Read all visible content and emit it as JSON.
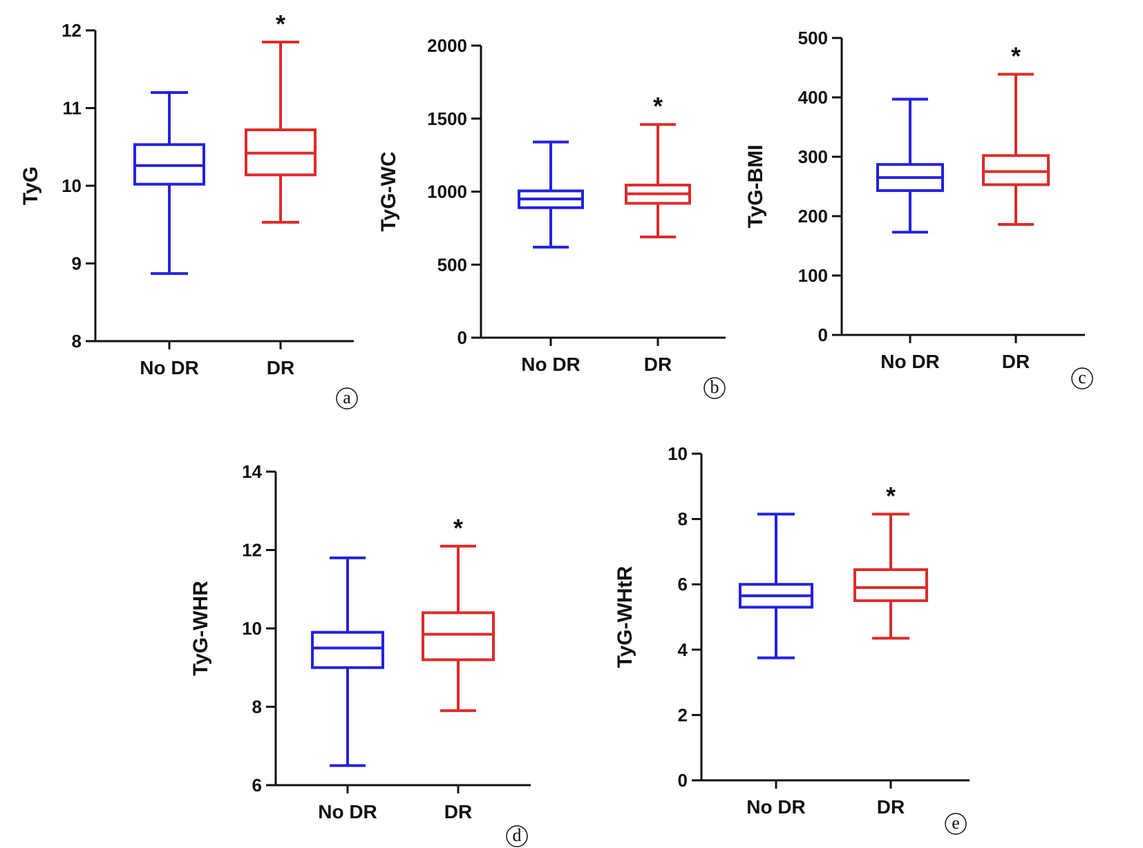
{
  "figure": {
    "colors": {
      "No DR": "#2222dd",
      "DR": "#dd2b2b"
    },
    "icon_names": [
      "significance-star-icon"
    ]
  },
  "chart_data": [
    {
      "type": "box",
      "panel_label": "a",
      "ylabel": "TyG",
      "ylim": [
        8,
        12
      ],
      "yticks": [
        8,
        9,
        10,
        11,
        12
      ],
      "categories": [
        "No DR",
        "DR"
      ],
      "series": [
        {
          "name": "No DR",
          "min": 8.87,
          "q1": 10.02,
          "median": 10.26,
          "q3": 10.53,
          "max": 11.2,
          "significance": ""
        },
        {
          "name": "DR",
          "min": 9.53,
          "q1": 10.14,
          "median": 10.42,
          "q3": 10.72,
          "max": 11.85,
          "significance": "*"
        }
      ]
    },
    {
      "type": "box",
      "panel_label": "b",
      "ylabel": "TyG-WC",
      "ylim": [
        0,
        2000
      ],
      "yticks": [
        0,
        500,
        1000,
        1500,
        2000
      ],
      "categories": [
        "No DR",
        "DR"
      ],
      "series": [
        {
          "name": "No DR",
          "min": 620,
          "q1": 890,
          "median": 950,
          "q3": 1005,
          "max": 1340,
          "significance": ""
        },
        {
          "name": "DR",
          "min": 690,
          "q1": 920,
          "median": 985,
          "q3": 1045,
          "max": 1460,
          "significance": "*"
        }
      ]
    },
    {
      "type": "box",
      "panel_label": "c",
      "ylabel": "TyG-BMI",
      "ylim": [
        0,
        500
      ],
      "yticks": [
        0,
        100,
        200,
        300,
        400,
        500
      ],
      "categories": [
        "No DR",
        "DR"
      ],
      "series": [
        {
          "name": "No DR",
          "min": 173,
          "q1": 243,
          "median": 265,
          "q3": 287,
          "max": 397,
          "significance": ""
        },
        {
          "name": "DR",
          "min": 186,
          "q1": 253,
          "median": 275,
          "q3": 302,
          "max": 439,
          "significance": "*"
        }
      ]
    },
    {
      "type": "box",
      "panel_label": "d",
      "ylabel": "TyG-WHR",
      "ylim": [
        6,
        14
      ],
      "yticks": [
        6,
        8,
        10,
        12,
        14
      ],
      "categories": [
        "No DR",
        "DR"
      ],
      "series": [
        {
          "name": "No DR",
          "min": 6.5,
          "q1": 9.0,
          "median": 9.5,
          "q3": 9.9,
          "max": 11.8,
          "significance": ""
        },
        {
          "name": "DR",
          "min": 7.9,
          "q1": 9.2,
          "median": 9.85,
          "q3": 10.4,
          "max": 12.1,
          "significance": "*"
        }
      ]
    },
    {
      "type": "box",
      "panel_label": "e",
      "ylabel": "TyG-WHtR",
      "ylim": [
        0,
        10
      ],
      "yticks": [
        0,
        2,
        4,
        6,
        8,
        10
      ],
      "categories": [
        "No DR",
        "DR"
      ],
      "series": [
        {
          "name": "No DR",
          "min": 3.75,
          "q1": 5.3,
          "median": 5.65,
          "q3": 6.0,
          "max": 8.15,
          "significance": ""
        },
        {
          "name": "DR",
          "min": 4.35,
          "q1": 5.5,
          "median": 5.9,
          "q3": 6.45,
          "max": 8.15,
          "significance": "*"
        }
      ]
    }
  ]
}
